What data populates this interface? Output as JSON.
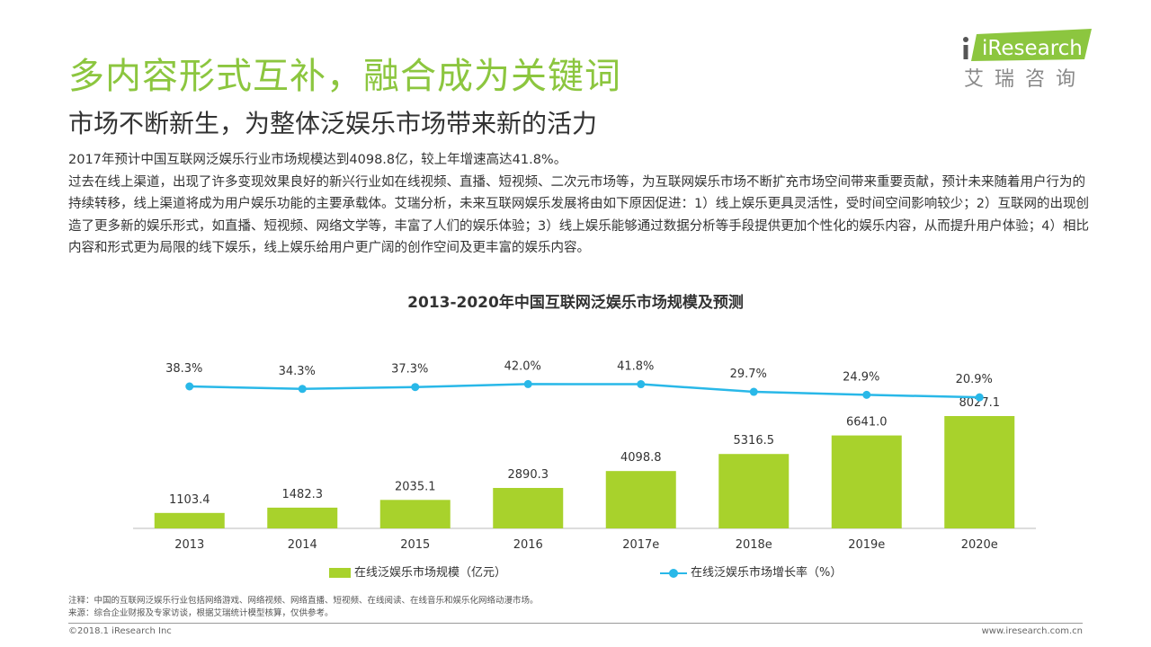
{
  "header": {
    "title": "多内容形式互补，融合成为关键词",
    "subtitle": "市场不断新生，为整体泛娱乐市场带来新的活力",
    "logo_brand": "iResearch",
    "logo_cn": "艾瑞咨询"
  },
  "body": {
    "line1": "2017年预计中国互联网泛娱乐行业市场规模达到4098.8亿，较上年增速高达41.8%。",
    "paragraph": "过去在线上渠道，出现了许多变现效果良好的新兴行业如在线视频、直播、短视频、二次元市场等，为互联网娱乐市场不断扩充市场空间带来重要贡献，预计未来随着用户行为的持续转移，线上渠道将成为用户娱乐功能的主要承载体。艾瑞分析，未来互联网娱乐发展将由如下原因促进：1）线上娱乐更具灵活性，受时间空间影响较少；2）互联网的出现创造了更多新的娱乐形式，如直播、短视频、网络文学等，丰富了人们的娱乐体验；3）线上娱乐能够通过数据分析等手段提供更加个性化的娱乐内容，从而提升用户体验；4）相比内容和形式更为局限的线下娱乐，线上娱乐给用户更广阔的创作空间及更丰富的娱乐内容。"
  },
  "chart_data": {
    "type": "bar",
    "title": "2013-2020年中国互联网泛娱乐市场规模及预测",
    "categories": [
      "2013",
      "2014",
      "2015",
      "2016",
      "2017e",
      "2018e",
      "2019e",
      "2020e"
    ],
    "series": [
      {
        "name": "在线泛娱乐市场规模（亿元）",
        "type": "bar",
        "color": "#a8d22c",
        "values": [
          1103.4,
          1482.3,
          2035.1,
          2890.3,
          4098.8,
          5316.5,
          6641.0,
          8027.1
        ],
        "labels": [
          "1103.4",
          "1482.3",
          "2035.1",
          "2890.3",
          "4098.8",
          "5316.5",
          "6641.0",
          "8027.1"
        ]
      },
      {
        "name": "在线泛娱乐市场增长率（%）",
        "type": "line",
        "color": "#29b8e8",
        "values": [
          38.3,
          34.3,
          37.3,
          42.0,
          41.8,
          29.7,
          24.9,
          20.9
        ],
        "labels": [
          "38.3%",
          "34.3%",
          "37.3%",
          "42.0%",
          "41.8%",
          "29.7%",
          "24.9%",
          "20.9%"
        ]
      }
    ],
    "legend_position": "bottom",
    "grid": false
  },
  "notes": {
    "note": "注释：中国的互联网泛娱乐行业包括网络游戏、网络视频、网络直播、短视频、在线阅读、在线音乐和娱乐化网络动漫市场。",
    "source": "来源：综合企业财报及专家访谈，根据艾瑞统计模型核算，仅供参考。"
  },
  "footer": {
    "copyright": "©2018.1 iResearch Inc",
    "website": "www.iresearch.com.cn"
  }
}
